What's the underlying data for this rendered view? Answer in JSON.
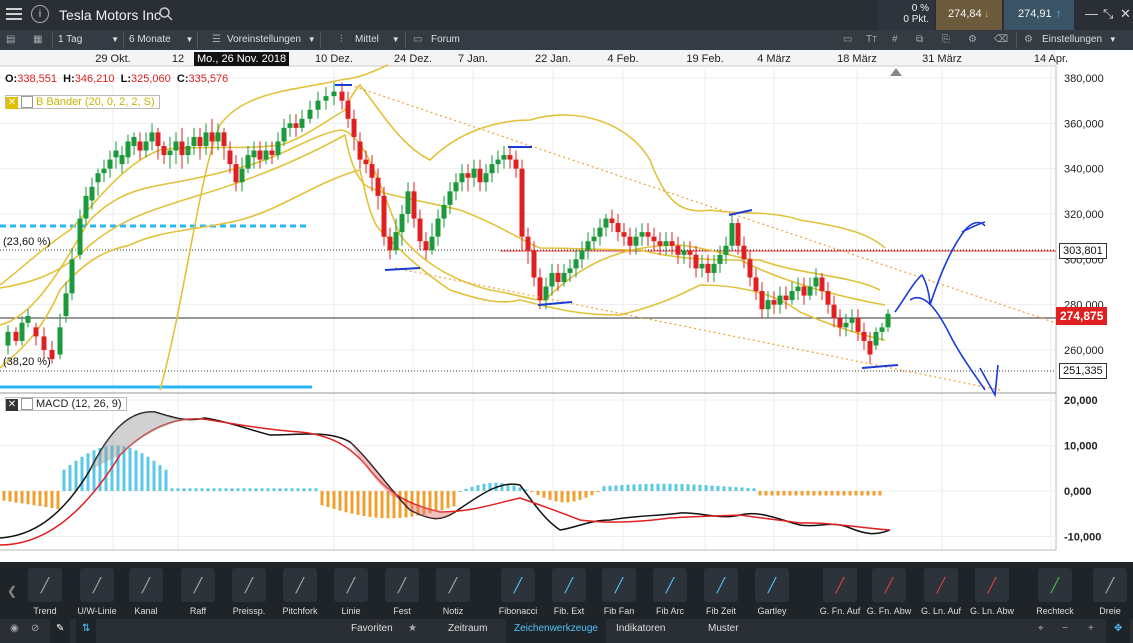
{
  "titlebar": {
    "title": "Tesla Motors Inc",
    "change_pct": "0 %",
    "change_pts": "0 Pkt.",
    "sell_price": "274,84",
    "buy_price": "274,91"
  },
  "toolbar": {
    "interval": "1 Tag",
    "range": "6 Monate",
    "presets": "Voreinstellungen",
    "chart_style": "Mittel",
    "forum": "Forum",
    "settings": "Einstellungen"
  },
  "chart": {
    "x_labels": [
      "29 Okt.",
      "12",
      "10 Dez.",
      "24 Dez.",
      "7 Jan.",
      "22 Jan.",
      "4 Feb.",
      "19 Feb.",
      "4 März",
      "18 März",
      "31 März",
      "14 Apr."
    ],
    "date_tooltip": "Mo., 26 Nov. 2018",
    "price_axis": [
      "380,000",
      "360,000",
      "340,000",
      "320,000",
      "300,000",
      "280,000",
      "260,000"
    ],
    "macd_axis": [
      "20,000",
      "10,000",
      "0,000",
      "-10,000"
    ],
    "ohlc": {
      "o_label": "O:",
      "o": "338,551",
      "h_label": "H:",
      "h": "346,210",
      "l_label": "L:",
      "l": "325,060",
      "c_label": "C:",
      "c": "335,576"
    },
    "bb_legend": "B Bänder (20, 0, 2, 2, S)",
    "macd_legend": "MACD (12, 26, 9)",
    "fib_upper": "(23,60 %)",
    "fib_lower": "(38,20 %)",
    "tag_resistance": "303,801",
    "tag_last": "274,875",
    "tag_support": "251,335",
    "colors": {
      "up": "#1a9a3a",
      "down": "#e02020",
      "bands": "#e2c23a",
      "fib": "#29b6f6",
      "macd_line": "#111111",
      "signal_line": "#e02020",
      "hist_pos": "#5bc8e8",
      "hist_neg": "#f0a030",
      "annotation": "#1a3bd6"
    }
  },
  "tools": [
    {
      "label": "Trend",
      "icon": "trend-line-icon"
    },
    {
      "label": "U/W-Linie",
      "icon": "support-line-icon"
    },
    {
      "label": "Kanal",
      "icon": "channel-icon"
    },
    {
      "label": "Raff",
      "icon": "raff-icon"
    },
    {
      "label": "Preissp.",
      "icon": "price-range-icon"
    },
    {
      "label": "Pitchfork",
      "icon": "pitchfork-icon"
    },
    {
      "label": "Linie",
      "icon": "vertical-line-icon"
    },
    {
      "label": "Fest",
      "icon": "fixed-line-icon"
    },
    {
      "label": "Notiz",
      "icon": "note-icon"
    },
    {
      "label": "Fibonacci",
      "icon": "fibonacci-icon"
    },
    {
      "label": "Fib. Ext",
      "icon": "fib-extension-icon"
    },
    {
      "label": "Fib Fan",
      "icon": "fib-fan-icon"
    },
    {
      "label": "Fib Arc",
      "icon": "fib-arc-icon"
    },
    {
      "label": "Fib Zeit",
      "icon": "fib-time-icon"
    },
    {
      "label": "Gartley",
      "icon": "gartley-icon"
    },
    {
      "label": "G. Fn. Auf",
      "icon": "gann-fan-up-icon"
    },
    {
      "label": "G. Fn. Abw",
      "icon": "gann-fan-down-icon"
    },
    {
      "label": "G. Ln. Auf",
      "icon": "gann-line-up-icon"
    },
    {
      "label": "G. Ln. Abw",
      "icon": "gann-line-down-icon"
    },
    {
      "label": "Rechteck",
      "icon": "rectangle-icon"
    },
    {
      "label": "Dreie",
      "icon": "triangle-icon"
    }
  ],
  "bottombar": {
    "favorites": "Favoriten",
    "timeframe": "Zeitraum",
    "drawing_tools": "Zeichenwerkzeuge",
    "indicators": "Indikatoren",
    "patterns": "Muster"
  }
}
